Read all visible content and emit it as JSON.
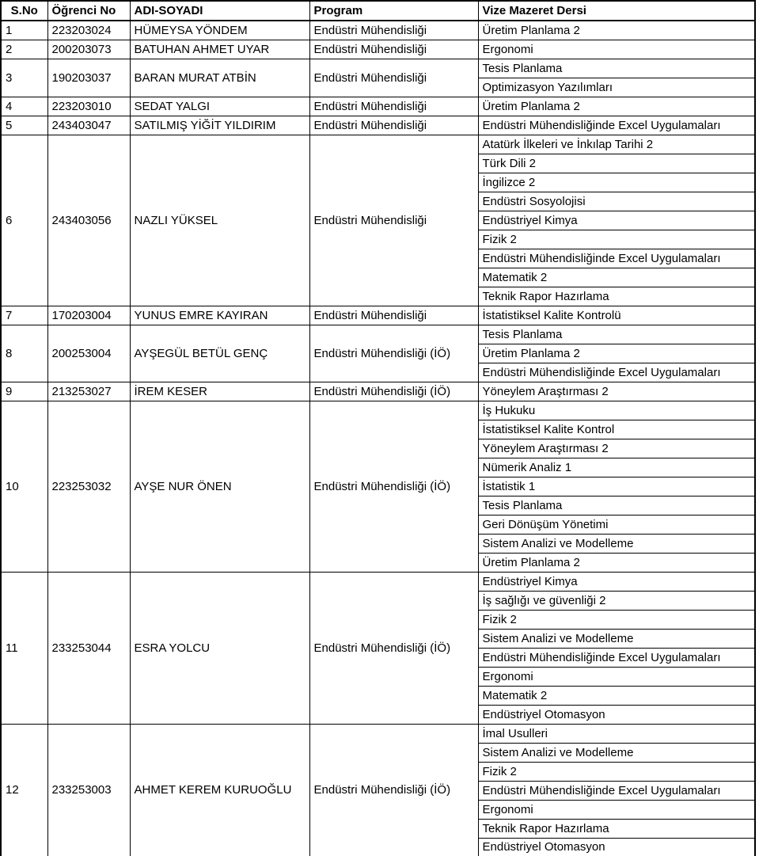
{
  "colors": {
    "background": "#ffffff",
    "border": "#000000",
    "text": "#000000"
  },
  "table": {
    "columns": [
      {
        "key": "sno",
        "label": "S.No"
      },
      {
        "key": "student_no",
        "label": "Öğrenci No"
      },
      {
        "key": "name",
        "label": "ADI-SOYADI"
      },
      {
        "key": "program",
        "label": "Program"
      },
      {
        "key": "courses",
        "label": "Vize Mazeret Dersi"
      }
    ],
    "rows": [
      {
        "sno": "1",
        "student_no": "223203024",
        "name": "HÜMEYSA YÖNDEM",
        "program": "Endüstri Mühendisliği",
        "courses": [
          "Üretim Planlama 2"
        ]
      },
      {
        "sno": "2",
        "student_no": "200203073",
        "name": "BATUHAN AHMET UYAR",
        "program": "Endüstri Mühendisliği",
        "courses": [
          "Ergonomi"
        ]
      },
      {
        "sno": "3",
        "student_no": "190203037",
        "name": "BARAN MURAT ATBİN",
        "program": "Endüstri Mühendisliği",
        "courses": [
          "Tesis Planlama",
          "Optimizasyon Yazılımları"
        ]
      },
      {
        "sno": "4",
        "student_no": "223203010",
        "name": "SEDAT YALGI",
        "program": "Endüstri Mühendisliği",
        "courses": [
          "Üretim Planlama 2"
        ]
      },
      {
        "sno": "5",
        "student_no": "243403047",
        "name": "SATILMIŞ YİĞİT YILDIRIM",
        "program": "Endüstri Mühendisliği",
        "courses": [
          "Endüstri Mühendisliğinde Excel Uygulamaları"
        ]
      },
      {
        "sno": "6",
        "student_no": "243403056",
        "name": "NAZLI YÜKSEL",
        "program": "Endüstri Mühendisliği",
        "courses": [
          "Atatürk İlkeleri ve İnkılap Tarihi 2",
          "Türk Dili 2",
          "İngilizce 2",
          "Endüstri Sosyolojisi",
          "Endüstriyel Kimya",
          "Fizik 2",
          "Endüstri Mühendisliğinde Excel Uygulamaları",
          "Matematik 2",
          "Teknik Rapor Hazırlama"
        ]
      },
      {
        "sno": "7",
        "student_no": "170203004",
        "name": "YUNUS EMRE KAYIRAN",
        "program": "Endüstri Mühendisliği",
        "courses": [
          "İstatistiksel Kalite Kontrolü"
        ]
      },
      {
        "sno": "8",
        "student_no": "200253004",
        "name": "AYŞEGÜL BETÜL GENÇ",
        "program": "Endüstri Mühendisliği (İÖ)",
        "courses": [
          "Tesis Planlama",
          "Üretim Planlama 2",
          "Endüstri Mühendisliğinde Excel Uygulamaları"
        ]
      },
      {
        "sno": "9",
        "student_no": "213253027",
        "name": "İREM KESER",
        "program": "Endüstri Mühendisliği (İÖ)",
        "courses": [
          "Yöneylem Araştırması 2"
        ]
      },
      {
        "sno": "10",
        "student_no": "223253032",
        "name": "AYŞE NUR ÖNEN",
        "program": "Endüstri Mühendisliği (İÖ)",
        "courses": [
          "İş Hukuku",
          "İstatistiksel Kalite Kontrol",
          "Yöneylem Araştırması 2",
          "Nümerik Analiz 1",
          "İstatistik 1",
          "Tesis Planlama",
          "Geri Dönüşüm Yönetimi",
          "Sistem Analizi ve Modelleme",
          "Üretim Planlama 2"
        ]
      },
      {
        "sno": "11",
        "student_no": "233253044",
        "name": "ESRA YOLCU",
        "program": "Endüstri Mühendisliği (İÖ)",
        "courses": [
          "Endüstriyel Kimya",
          "İş sağlığı ve güvenliği 2",
          "Fizik 2",
          "Sistem Analizi ve Modelleme",
          "Endüstri Mühendisliğinde Excel Uygulamaları",
          "Ergonomi",
          "Matematik 2",
          "Endüstriyel Otomasyon"
        ]
      },
      {
        "sno": "12",
        "student_no": "233253003",
        "name": "AHMET KEREM KURUOĞLU",
        "program": "Endüstri Mühendisliği (İÖ)",
        "courses": [
          "İmal Usulleri",
          "Sistem Analizi ve Modelleme",
          "Fizik 2",
          "Endüstri Mühendisliğinde Excel Uygulamaları",
          "Ergonomi",
          "Teknik Rapor Hazırlama",
          "Endüstriyel Otomasyon"
        ]
      }
    ]
  }
}
